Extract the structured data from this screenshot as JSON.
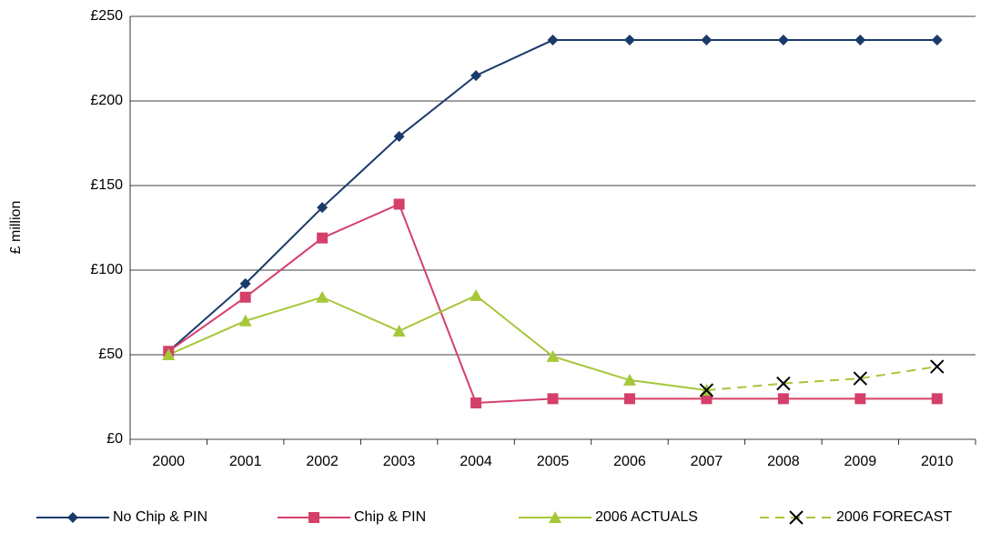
{
  "chart_data": {
    "type": "line",
    "y_label": "£ million",
    "categories": [
      "2000",
      "2001",
      "2002",
      "2003",
      "2004",
      "2005",
      "2006",
      "2007",
      "2008",
      "2009",
      "2010"
    ],
    "ylim": [
      0,
      250
    ],
    "yticks": [
      {
        "value": 0,
        "label": "£0"
      },
      {
        "value": 50,
        "label": "£50"
      },
      {
        "value": 100,
        "label": "£100"
      },
      {
        "value": 150,
        "label": "£150"
      },
      {
        "value": 200,
        "label": "£200"
      },
      {
        "value": 250,
        "label": "£250"
      }
    ],
    "grid": true,
    "legend": "bottom",
    "series": [
      {
        "name": "No Chip & PIN",
        "color": "#1b3a6b",
        "marker": "diamond",
        "dashed": false,
        "values": [
          52,
          92,
          137,
          179,
          215,
          236,
          236,
          236,
          236,
          236,
          236
        ]
      },
      {
        "name": "Chip & PIN",
        "color": "#d4406a",
        "marker": "square",
        "dashed": false,
        "values": [
          52,
          84,
          119,
          139,
          21.5,
          24,
          24,
          24,
          24,
          24,
          24
        ]
      },
      {
        "name": "2006 ACTUALS",
        "color": "#a5c73a",
        "marker": "triangle",
        "dashed": false,
        "values": [
          50,
          70,
          84,
          64,
          85,
          49,
          35,
          29,
          null,
          null,
          null
        ]
      },
      {
        "name": "2006 FORECAST",
        "color": "#a5c73a",
        "marker": "x",
        "dashed": true,
        "values": [
          null,
          null,
          null,
          null,
          null,
          null,
          null,
          29,
          33,
          36,
          43
        ]
      }
    ]
  }
}
